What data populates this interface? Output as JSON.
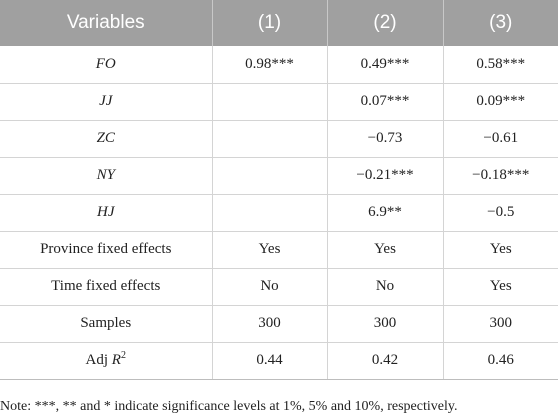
{
  "table": {
    "headers": [
      "Variables",
      "(1)",
      "(2)",
      "(3)"
    ],
    "rows": [
      {
        "variable": "FO",
        "italic": true,
        "values": [
          "0.98***",
          "0.49***",
          "0.58***"
        ]
      },
      {
        "variable": "JJ",
        "italic": true,
        "values": [
          "",
          "0.07***",
          "0.09***"
        ]
      },
      {
        "variable": "ZC",
        "italic": true,
        "values": [
          "",
          "−0.73",
          "−0.61"
        ]
      },
      {
        "variable": "NY",
        "italic": true,
        "values": [
          "",
          "−0.21***",
          "−0.18***"
        ]
      },
      {
        "variable": "HJ",
        "italic": true,
        "values": [
          "",
          "6.9**",
          "−0.5"
        ]
      },
      {
        "variable": "Province fixed effects",
        "italic": false,
        "values": [
          "Yes",
          "Yes",
          "Yes"
        ]
      },
      {
        "variable": "Time fixed effects",
        "italic": false,
        "values": [
          "No",
          "No",
          "Yes"
        ]
      },
      {
        "variable": "Samples",
        "italic": false,
        "values": [
          "300",
          "300",
          "300"
        ]
      },
      {
        "variable": "Adj R",
        "italic": false,
        "sup": "2",
        "values": [
          "0.44",
          "0.42",
          "0.46"
        ]
      }
    ]
  },
  "note": "Note: ***, ** and * indicate significance levels at 1%, 5% and 10%, respectively."
}
